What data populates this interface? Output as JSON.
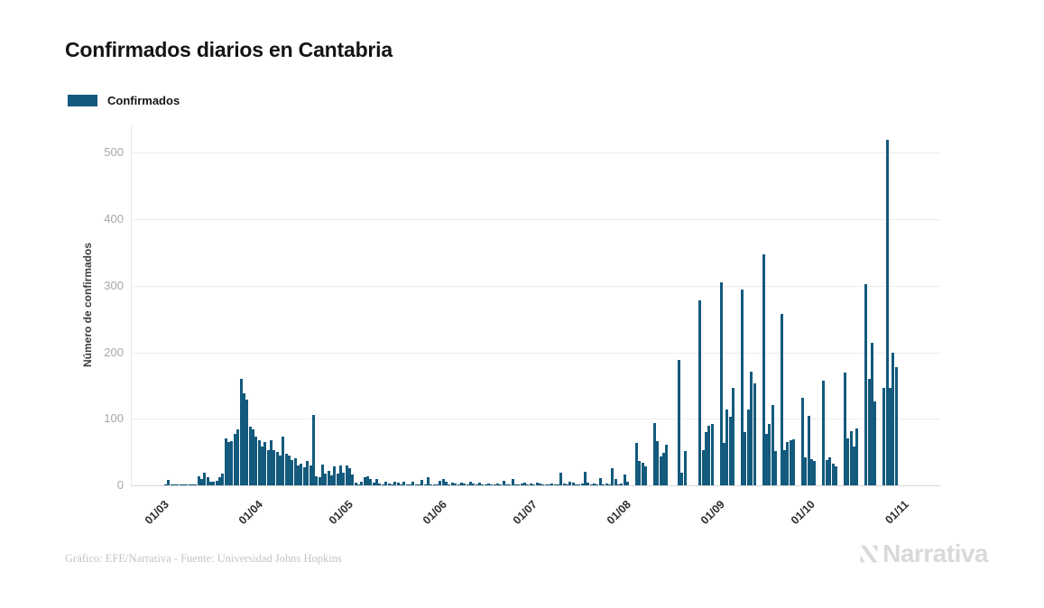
{
  "page": {
    "background": "#ffffff"
  },
  "header": {
    "title": "Confirmados diarios en Cantabria"
  },
  "legend": {
    "label": "Confirmados",
    "swatch_color": "#135A7D"
  },
  "chart_data": {
    "type": "bar",
    "title": "Confirmados diarios en Cantabria",
    "series_name": "Confirmados",
    "xlabel": "",
    "ylabel": "Número de confirmados",
    "y_ticks": [
      0,
      100,
      200,
      300,
      400,
      500
    ],
    "ylim": [
      0,
      540
    ],
    "grid": "horizontal",
    "legend_position": "top-left",
    "bar_color": "#135A7D",
    "x_unit": "day",
    "x_tick_labels": [
      "01/03",
      "01/04",
      "01/05",
      "01/06",
      "01/07",
      "01/08",
      "01/09",
      "01/10",
      "01/11"
    ],
    "x_tick_day_index": [
      0,
      31,
      61,
      92,
      122,
      153,
      184,
      214,
      245
    ],
    "values": [
      0,
      1,
      8,
      1,
      1,
      2,
      1,
      2,
      1,
      2,
      1,
      2,
      13,
      9,
      19,
      12,
      6,
      5,
      7,
      12,
      17,
      71,
      65,
      66,
      78,
      84,
      160,
      139,
      129,
      88,
      84,
      73,
      68,
      58,
      65,
      53,
      68,
      53,
      50,
      45,
      73,
      47,
      45,
      38,
      41,
      30,
      33,
      27,
      36,
      30,
      106,
      14,
      12,
      31,
      17,
      22,
      15,
      28,
      18,
      30,
      19,
      30,
      26,
      16,
      4,
      2,
      6,
      12,
      13,
      10,
      4,
      9,
      3,
      2,
      6,
      3,
      2,
      5,
      4,
      2,
      5,
      2,
      1,
      5,
      1,
      2,
      8,
      2,
      12,
      2,
      1,
      2,
      7,
      10,
      5,
      1,
      4,
      3,
      1,
      4,
      3,
      1,
      6,
      3,
      1,
      4,
      1,
      2,
      3,
      1,
      2,
      3,
      1,
      7,
      1,
      2,
      10,
      2,
      1,
      3,
      4,
      2,
      3,
      2,
      4,
      3,
      2,
      1,
      2,
      3,
      1,
      2,
      19,
      3,
      2,
      5,
      4,
      2,
      2,
      3,
      21,
      4,
      2,
      3,
      2,
      11,
      2,
      3,
      2,
      26,
      10,
      2,
      3,
      16,
      5,
      0,
      0,
      64,
      36,
      34,
      29,
      0,
      0,
      93,
      66,
      44,
      49,
      61,
      0,
      0,
      0,
      189,
      19,
      52,
      0,
      0,
      0,
      0,
      278,
      53,
      80,
      89,
      92,
      0,
      0,
      305,
      64,
      114,
      103,
      146,
      0,
      0,
      295,
      80,
      114,
      171,
      153,
      0,
      0,
      348,
      78,
      92,
      121,
      51,
      0,
      258,
      53,
      65,
      68,
      69,
      0,
      0,
      131,
      42,
      105,
      40,
      36,
      0,
      0,
      158,
      38,
      42,
      33,
      28,
      0,
      0,
      170,
      70,
      82,
      58,
      85,
      0,
      0,
      303,
      160,
      215,
      126,
      0,
      0,
      146,
      520,
      147,
      200,
      178,
      0
    ]
  },
  "footer": {
    "credit": "Gráfico: EFE/Narrativa - Fuente: Universidad Johns Hopkins",
    "brand": "Narrativa"
  }
}
